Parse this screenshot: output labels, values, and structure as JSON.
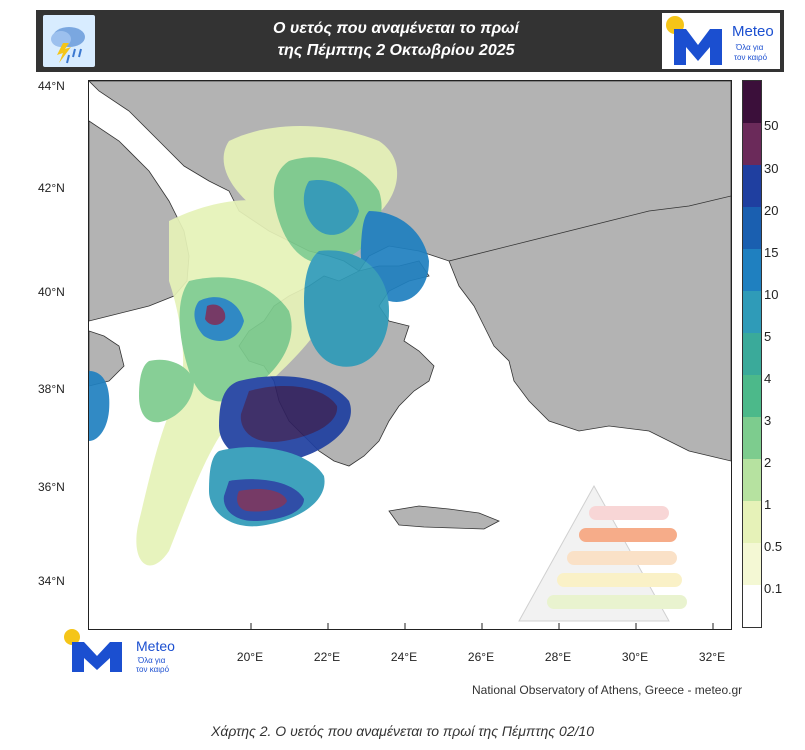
{
  "header": {
    "title_line1": "Ο υετός που αναμένεται το πρωί",
    "title_line2": "της Πέμπτης 2 Οκτωβρίου 2025",
    "icon": "rain-cloud-lightning-icon"
  },
  "logo": {
    "name": "Meteo",
    "tagline_line1": "Όλα για",
    "tagline_line2": "τον καιρό"
  },
  "axes": {
    "lat_labels": [
      "44°N",
      "42°N",
      "40°N",
      "38°N",
      "36°N",
      "34°N"
    ],
    "lon_labels": [
      "20°E",
      "22°E",
      "24°E",
      "26°E",
      "28°E",
      "30°E",
      "32°E"
    ]
  },
  "colorbar": {
    "labels": [
      "50",
      "30",
      "20",
      "15",
      "10",
      "5",
      "4",
      "3",
      "2",
      "1",
      "0.5",
      "0.1"
    ],
    "colors": [
      "#3b0f3a",
      "#6b2a5a",
      "#1f3fa0",
      "#1a5fb0",
      "#1f80c0",
      "#2f9bb8",
      "#3aaa9a",
      "#4cb98a",
      "#7dcc8e",
      "#b6e2a0",
      "#e6f2b8",
      "#f4f8d4",
      "#ffffff"
    ]
  },
  "credit": "National Observatory of Athens, Greece - meteo.gr",
  "caption": "Χάρτης 2. Ο υετός που αναμένεται το πρωί της Πέμπτης 02/10",
  "colors": {
    "land": "#b3b3b3",
    "sea": "#ffffff",
    "header_bg": "#333333",
    "brand_blue": "#1b4fd0",
    "brand_yellow": "#f5c518"
  }
}
